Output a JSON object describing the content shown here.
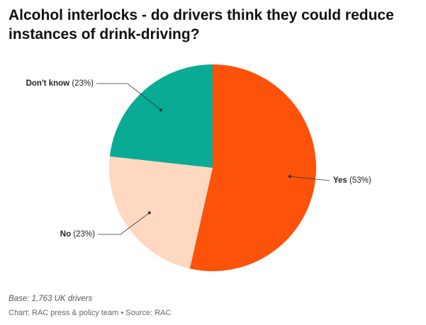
{
  "chart_data": {
    "type": "pie",
    "title": "Alcohol interlocks - do drivers think they could reduce instances of drink-driving?",
    "categories": [
      "Yes",
      "No",
      "Don't know"
    ],
    "values": [
      53,
      23,
      23
    ],
    "value_labels": [
      "(53%)",
      "(23%)",
      "(23%)"
    ],
    "colors": [
      "#fc5209",
      "#ffd8c2",
      "#0aab95"
    ],
    "note": "Base: 1,763 UK drivers",
    "credit": "Chart: RAC press & policy team • Source: RAC"
  }
}
